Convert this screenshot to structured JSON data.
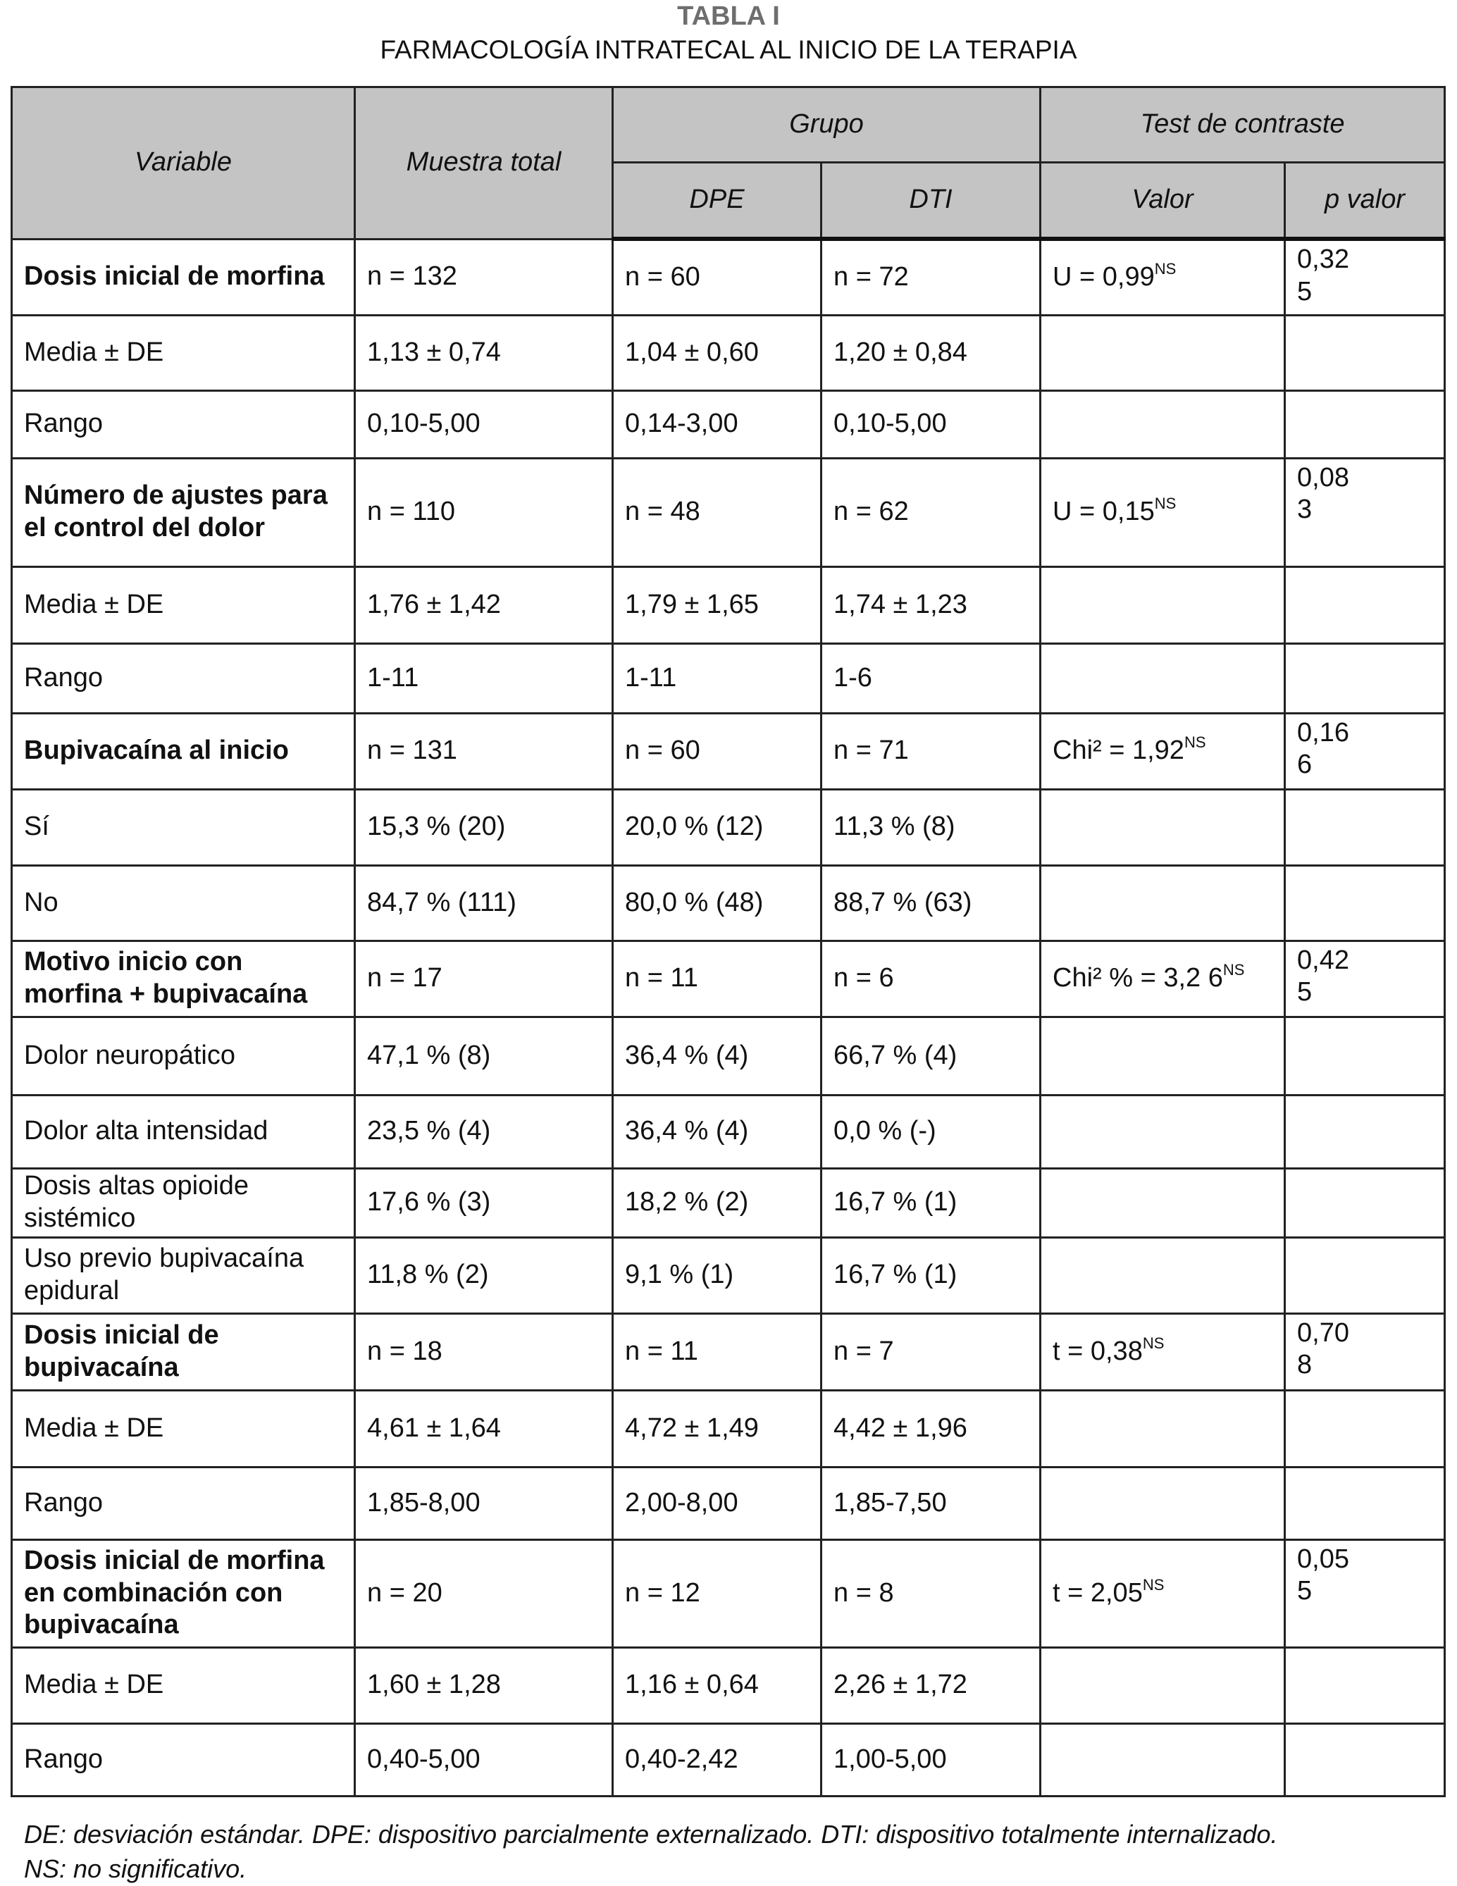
{
  "title": "TABLA I",
  "subtitle": "FARMACOLOGÍA INTRATECAL AL INICIO DE LA TERAPIA",
  "header": {
    "variable": "Variable",
    "total": "Muestra total",
    "grupo": "Grupo",
    "test": "Test de contraste",
    "dpe": "DPE",
    "dti": "DTI",
    "valor": "Valor",
    "p": "p valor"
  },
  "rows": [
    {
      "var": "Dosis inicial de morfina",
      "bold": true,
      "total": "n = 132",
      "dpe": "n = 60",
      "dti": "n = 72",
      "valor": "U = 0,99",
      "sup": "NS",
      "p": "0,32\n5"
    },
    {
      "var": "Media ± DE",
      "total": "1,13 ± 0,74",
      "dpe": "1,04 ± 0,60",
      "dti": "1,20 ± 0,84"
    },
    {
      "var": "Rango",
      "total": "0,10-5,00",
      "dpe": "0,14-3,00",
      "dti": "0,10-5,00"
    },
    {
      "var": "Número de ajustes para el control del dolor",
      "bold": true,
      "total": "n = 110",
      "dpe": "n = 48",
      "dti": "n = 62",
      "valor": "U = 0,15",
      "sup": "NS",
      "p": "0,08\n3"
    },
    {
      "var": "Media ± DE",
      "total": "1,76 ± 1,42",
      "dpe": "1,79 ± 1,65",
      "dti": "1,74 ± 1,23"
    },
    {
      "var": "Rango",
      "total": "1-11",
      "dpe": "1-11",
      "dti": "1-6"
    },
    {
      "var": "Bupivacaína al inicio",
      "bold": true,
      "total": "n = 131",
      "dpe": "n = 60",
      "dti": "n = 71",
      "valor": "Chi² = 1,92",
      "sup": "NS",
      "p": "0,16\n6"
    },
    {
      "var": "Sí",
      "total": "15,3 % (20)",
      "dpe": "20,0 % (12)",
      "dti": "11,3 % (8)"
    },
    {
      "var": "No",
      "total": "84,7 % (111)",
      "dpe": "80,0 % (48)",
      "dti": "88,7 % (63)"
    },
    {
      "var": "Motivo inicio con morfina + bupivacaína",
      "bold": true,
      "total": "n = 17",
      "dpe": "n = 11",
      "dti": "n = 6",
      "valor": "Chi² % = 3,2 6",
      "sup": "NS",
      "p": "0,42\n5"
    },
    {
      "var": "Dolor neuropático",
      "total": "47,1 % (8)",
      "dpe": "36,4 % (4)",
      "dti": "66,7 % (4)"
    },
    {
      "var": "Dolor alta intensidad",
      "total": "23,5 % (4)",
      "dpe": "36,4 % (4)",
      "dti": "0,0 % (-)"
    },
    {
      "var": "Dosis altas opioide sistémico",
      "total": "17,6 % (3)",
      "dpe": "18,2 % (2)",
      "dti": "16,7 % (1)"
    },
    {
      "var": "Uso previo bupivacaína epidural",
      "total": "11,8 % (2)",
      "dpe": "9,1 % (1)",
      "dti": "16,7 % (1)"
    },
    {
      "var": "Dosis inicial de bupivacaína",
      "bold": true,
      "total": "n = 18",
      "dpe": "n = 11",
      "dti": "n = 7",
      "valor": "t = 0,38",
      "sup": "NS",
      "p": "0,70\n8"
    },
    {
      "var": "Media ± DE",
      "total": "4,61 ± 1,64",
      "dpe": "4,72 ± 1,49",
      "dti": "4,42 ± 1,96"
    },
    {
      "var": "Rango",
      "total": "1,85-8,00",
      "dpe": "2,00-8,00",
      "dti": "1,85-7,50"
    },
    {
      "var": "Dosis inicial de morfina en combinación con bupivacaína",
      "bold": true,
      "total": "n = 20",
      "dpe": "n = 12",
      "dti": "n = 8",
      "valor": "t = 2,05",
      "sup": "NS",
      "p": "0,05\n5"
    },
    {
      "var": "Media ± DE",
      "total": "1,60 ± 1,28",
      "dpe": "1,16 ± 0,64",
      "dti": "2,26 ± 1,72"
    },
    {
      "var": "Rango",
      "total": "0,40-5,00",
      "dpe": "0,40-2,42",
      "dti": "1,00-5,00"
    }
  ],
  "footnote": [
    "DE: desviación estándar. DPE: dispositivo parcialmente externalizado. DTI: dispositivo totalmente internalizado.",
    "NS: no significativo."
  ]
}
